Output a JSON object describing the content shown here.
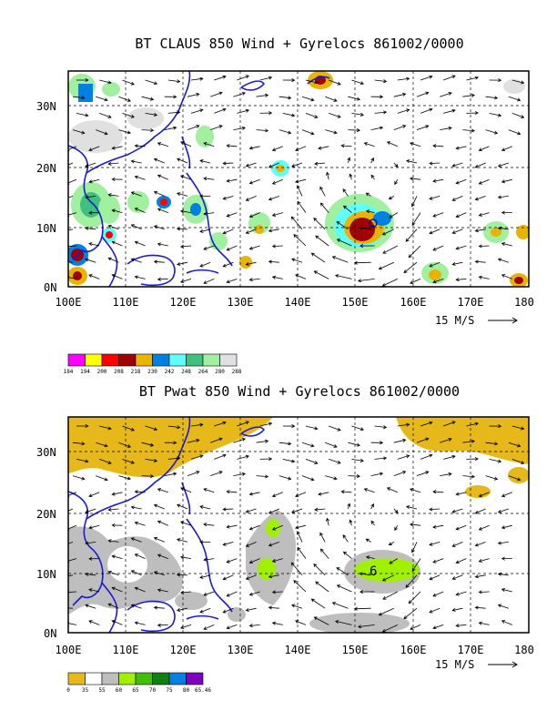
{
  "panels": [
    {
      "id": "claus",
      "title": "BT CLAUS 850 Wind + Gyrelocs 861002/0000",
      "y_ticks": [
        "30N",
        "20N",
        "10N",
        "0N"
      ],
      "x_ticks": [
        "100E",
        "110E",
        "120E",
        "130E",
        "140E",
        "150E",
        "160E",
        "170E",
        "180"
      ],
      "wind_ref": "15 M/S",
      "legend": {
        "colors": [
          "#ff00ff",
          "#ffff00",
          "#ff0000",
          "#a00000",
          "#e8b400",
          "#0080e0",
          "#60ffff",
          "#40c080",
          "#a0f0a0",
          "#e0e0e0"
        ],
        "labels": [
          "184",
          "194",
          "200",
          "208",
          "218",
          "230",
          "242",
          "248",
          "264",
          "280",
          "288"
        ]
      }
    },
    {
      "id": "pwat",
      "title": "BT Pwat 850 Wind + Gyrelocs 861002/0000",
      "y_ticks": [
        "30N",
        "20N",
        "10N",
        "0N"
      ],
      "x_ticks": [
        "100E",
        "110E",
        "120E",
        "130E",
        "140E",
        "150E",
        "160E",
        "170E",
        "180"
      ],
      "wind_ref": "15 M/S",
      "gyre_label": "6",
      "legend": {
        "colors": [
          "#e6b81a",
          "#ffffff",
          "#bebebe",
          "#a0f000",
          "#40c000",
          "#108010",
          "#0080e0",
          "#8000c0"
        ],
        "labels": [
          "0",
          "35",
          "55",
          "60",
          "65",
          "70",
          "75",
          "80",
          "65.46"
        ]
      }
    }
  ]
}
